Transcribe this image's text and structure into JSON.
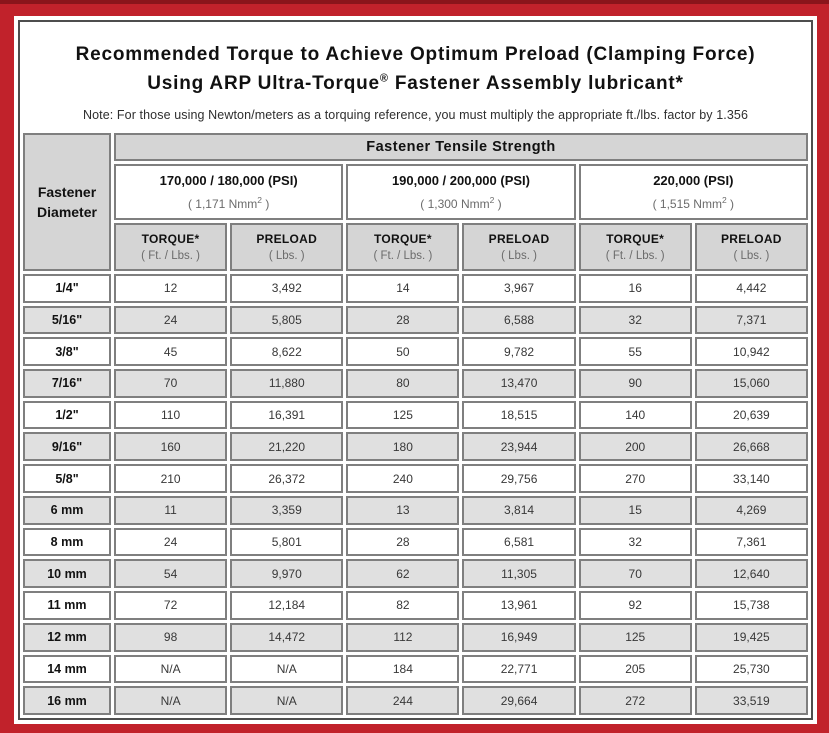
{
  "colors": {
    "frame_red": "#c1222b",
    "frame_red_dark_edge": "#8a151b",
    "page_border_gray": "#4e4e4e",
    "cell_border_gray": "#7f7f7f",
    "header_gray": "#d5d5d5",
    "stripe_gray": "#e0e0e0"
  },
  "header": {
    "title_line1": "Recommended Torque to Achieve Optimum Preload (Clamping Force)",
    "title_line2_prefix": "Using ARP Ultra-Torque",
    "title_line2_reg": "®",
    "title_line2_suffix": " Fastener Assembly lubricant*",
    "note": "Note: For those using Newton/meters as a torquing reference, you must multiply the appropriate ft./lbs. factor by 1.356"
  },
  "table": {
    "tensile_strength_header": "Fastener Tensile Strength",
    "diameter_header_line1": "Fastener",
    "diameter_header_line2": "Diameter",
    "groups": [
      {
        "psi": "170,000 / 180,000 (PSI)",
        "nmm_prefix": "( 1,171 Nmm",
        "nmm_sup": "2",
        "nmm_suffix": " )"
      },
      {
        "psi": "190,000 / 200,000 (PSI)",
        "nmm_prefix": "( 1,300 Nmm",
        "nmm_sup": "2",
        "nmm_suffix": " )"
      },
      {
        "psi": "220,000 (PSI)",
        "nmm_prefix": "( 1,515 Nmm",
        "nmm_sup": "2",
        "nmm_suffix": " )"
      }
    ],
    "sub_columns": [
      {
        "label": "TORQUE*",
        "unit": "( Ft. / Lbs. )"
      },
      {
        "label": "PRELOAD",
        "unit": "( Lbs. )"
      }
    ],
    "rows": [
      {
        "diameter": "1/4\"",
        "values": [
          "12",
          "3,492",
          "14",
          "3,967",
          "16",
          "4,442"
        ]
      },
      {
        "diameter": "5/16\"",
        "values": [
          "24",
          "5,805",
          "28",
          "6,588",
          "32",
          "7,371"
        ]
      },
      {
        "diameter": "3/8\"",
        "values": [
          "45",
          "8,622",
          "50",
          "9,782",
          "55",
          "10,942"
        ]
      },
      {
        "diameter": "7/16\"",
        "values": [
          "70",
          "11,880",
          "80",
          "13,470",
          "90",
          "15,060"
        ]
      },
      {
        "diameter": "1/2\"",
        "values": [
          "110",
          "16,391",
          "125",
          "18,515",
          "140",
          "20,639"
        ]
      },
      {
        "diameter": "9/16\"",
        "values": [
          "160",
          "21,220",
          "180",
          "23,944",
          "200",
          "26,668"
        ]
      },
      {
        "diameter": "5/8\"",
        "values": [
          "210",
          "26,372",
          "240",
          "29,756",
          "270",
          "33,140"
        ]
      },
      {
        "diameter": "6 mm",
        "values": [
          "11",
          "3,359",
          "13",
          "3,814",
          "15",
          "4,269"
        ]
      },
      {
        "diameter": "8 mm",
        "values": [
          "24",
          "5,801",
          "28",
          "6,581",
          "32",
          "7,361"
        ]
      },
      {
        "diameter": "10 mm",
        "values": [
          "54",
          "9,970",
          "62",
          "11,305",
          "70",
          "12,640"
        ]
      },
      {
        "diameter": "11 mm",
        "values": [
          "72",
          "12,184",
          "82",
          "13,961",
          "92",
          "15,738"
        ]
      },
      {
        "diameter": "12 mm",
        "values": [
          "98",
          "14,472",
          "112",
          "16,949",
          "125",
          "19,425"
        ]
      },
      {
        "diameter": "14 mm",
        "values": [
          "N/A",
          "N/A",
          "184",
          "22,771",
          "205",
          "25,730"
        ]
      },
      {
        "diameter": "16 mm",
        "values": [
          "N/A",
          "N/A",
          "244",
          "29,664",
          "272",
          "33,519"
        ]
      }
    ]
  }
}
